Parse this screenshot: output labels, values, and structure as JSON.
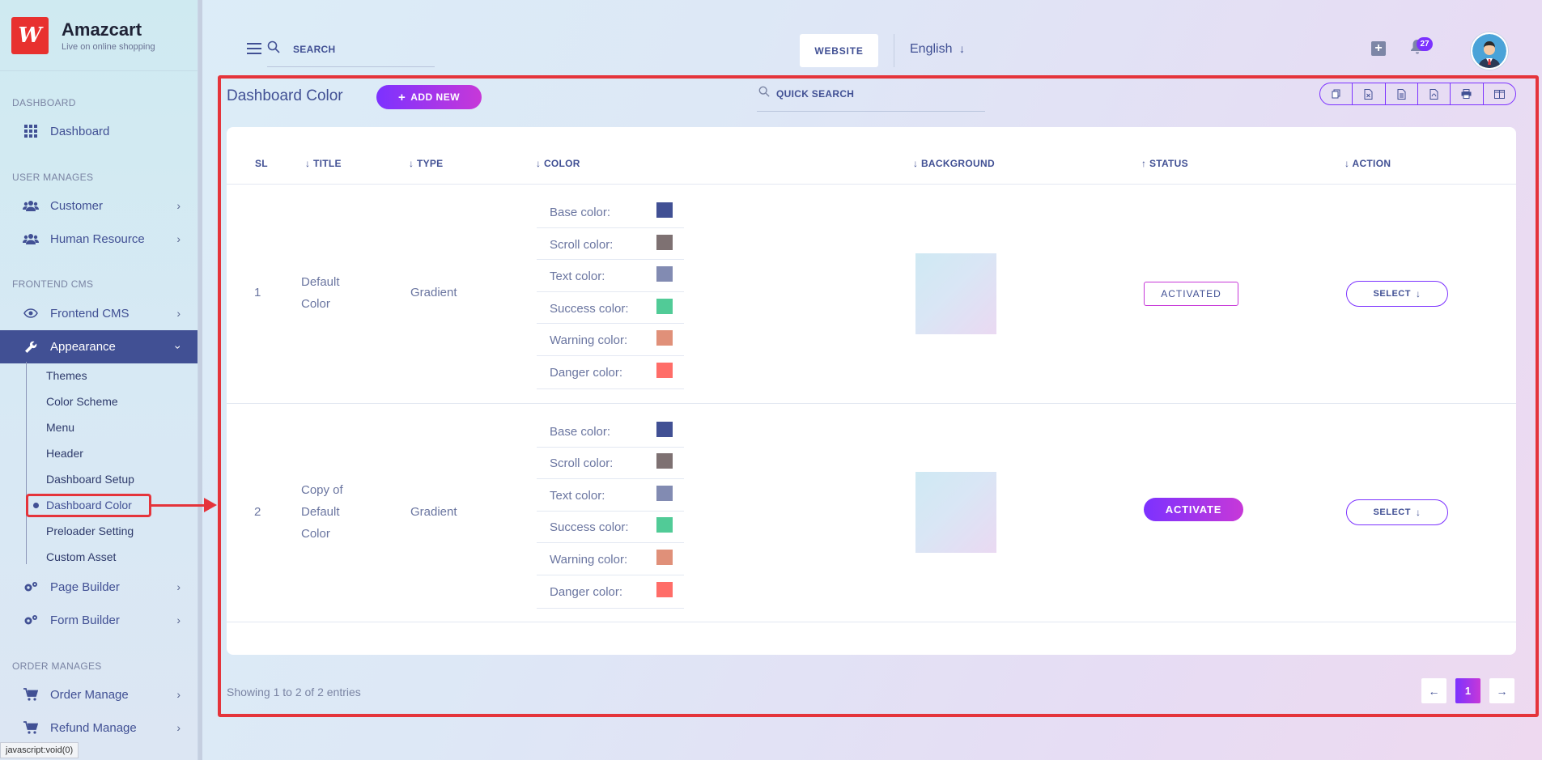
{
  "app": {
    "name": "Amazcart",
    "tagline": "Live on online shopping",
    "logo_letter": "W"
  },
  "sidebar": {
    "sections": {
      "dashboard": "DASHBOARD",
      "user_manages": "USER MANAGES",
      "frontend_cms": "FRONTEND CMS",
      "order_manages": "ORDER MANAGES"
    },
    "items": {
      "dashboard": "Dashboard",
      "customer": "Customer",
      "human_resource": "Human Resource",
      "frontend_cms": "Frontend CMS",
      "appearance": "Appearance",
      "page_builder": "Page Builder",
      "form_builder": "Form Builder",
      "order_manage": "Order Manage",
      "refund_manage": "Refund Manage"
    },
    "appearance_sub": [
      "Themes",
      "Color Scheme",
      "Menu",
      "Header",
      "Dashboard Setup",
      "Dashboard Color",
      "Preloader Setting",
      "Custom Asset"
    ]
  },
  "header": {
    "search_placeholder": "SEARCH",
    "website_label": "WEBSITE",
    "language": "English",
    "notification_count": "27"
  },
  "page": {
    "title": "Dashboard Color",
    "add_new": "ADD NEW",
    "quick_search_placeholder": "QUICK SEARCH"
  },
  "table": {
    "headers": {
      "sl": "SL",
      "title": "TITLE",
      "type": "TYPE",
      "color": "COLOR",
      "background": "BACKGROUND",
      "status": "STATUS",
      "action": "ACTION"
    },
    "color_labels": [
      "Base color:",
      "Scroll color:",
      "Text color:",
      "Success color:",
      "Warning color:",
      "Danger color:"
    ],
    "swatch_colors": [
      "#415094",
      "#7e7172",
      "#828bb2",
      "#51cb97",
      "#e09079",
      "#ff6d68"
    ],
    "rows": [
      {
        "sl": "1",
        "title_l1": "Default",
        "title_l2": "Color",
        "type": "Gradient",
        "status": "ACTIVATED",
        "action": "SELECT"
      },
      {
        "sl": "2",
        "title_l1": "Copy of",
        "title_l2": "Default",
        "title_l3": "Color",
        "type": "Gradient",
        "status": "ACTIVATE",
        "action": "SELECT"
      }
    ]
  },
  "footer": {
    "showing": "Showing 1 to 2 of 2 entries",
    "current_page": "1"
  },
  "statusbar": {
    "text": "javascript:void(0)"
  },
  "colors": {
    "accent": "#7c32ff",
    "accent2": "#c738d8",
    "primary": "#415094",
    "highlight": "#e5343b"
  }
}
